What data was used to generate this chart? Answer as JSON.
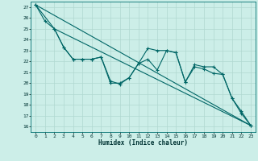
{
  "title": "",
  "xlabel": "Humidex (Indice chaleur)",
  "ylabel": "",
  "bg_color": "#cceee8",
  "grid_color": "#b0d8d0",
  "line_color": "#006666",
  "xlim": [
    -0.5,
    23.5
  ],
  "ylim": [
    15.5,
    27.5
  ],
  "xticks": [
    0,
    1,
    2,
    3,
    4,
    5,
    6,
    7,
    8,
    9,
    10,
    11,
    12,
    13,
    14,
    15,
    16,
    17,
    18,
    19,
    20,
    21,
    22,
    23
  ],
  "yticks": [
    16,
    17,
    18,
    19,
    20,
    21,
    22,
    23,
    24,
    25,
    26,
    27
  ],
  "line1_x": [
    0,
    1,
    2,
    3,
    4,
    5,
    6,
    7,
    8,
    9,
    10,
    11,
    12,
    13,
    14,
    15,
    16,
    17,
    18,
    19,
    20,
    21,
    22,
    23
  ],
  "line1_y": [
    27.2,
    25.7,
    25.0,
    23.3,
    22.2,
    22.2,
    22.2,
    22.4,
    20.0,
    20.0,
    20.5,
    21.8,
    23.2,
    23.0,
    23.0,
    22.8,
    20.1,
    21.7,
    21.5,
    21.5,
    20.8,
    18.6,
    17.4,
    16.1
  ],
  "line2_x": [
    0,
    2,
    3,
    4,
    5,
    6,
    7,
    8,
    9,
    10,
    11,
    12,
    13,
    14,
    15,
    16,
    17,
    18,
    19,
    20,
    21,
    22,
    23
  ],
  "line2_y": [
    27.2,
    25.0,
    23.3,
    22.2,
    22.2,
    22.2,
    22.4,
    20.2,
    19.9,
    20.5,
    21.8,
    22.2,
    21.2,
    23.0,
    22.8,
    20.1,
    21.5,
    21.3,
    20.9,
    20.8,
    18.6,
    17.2,
    16.1
  ],
  "line3_x": [
    0,
    23
  ],
  "line3_y": [
    27.2,
    16.1
  ],
  "line4_x": [
    2,
    23
  ],
  "line4_y": [
    25.0,
    16.1
  ]
}
